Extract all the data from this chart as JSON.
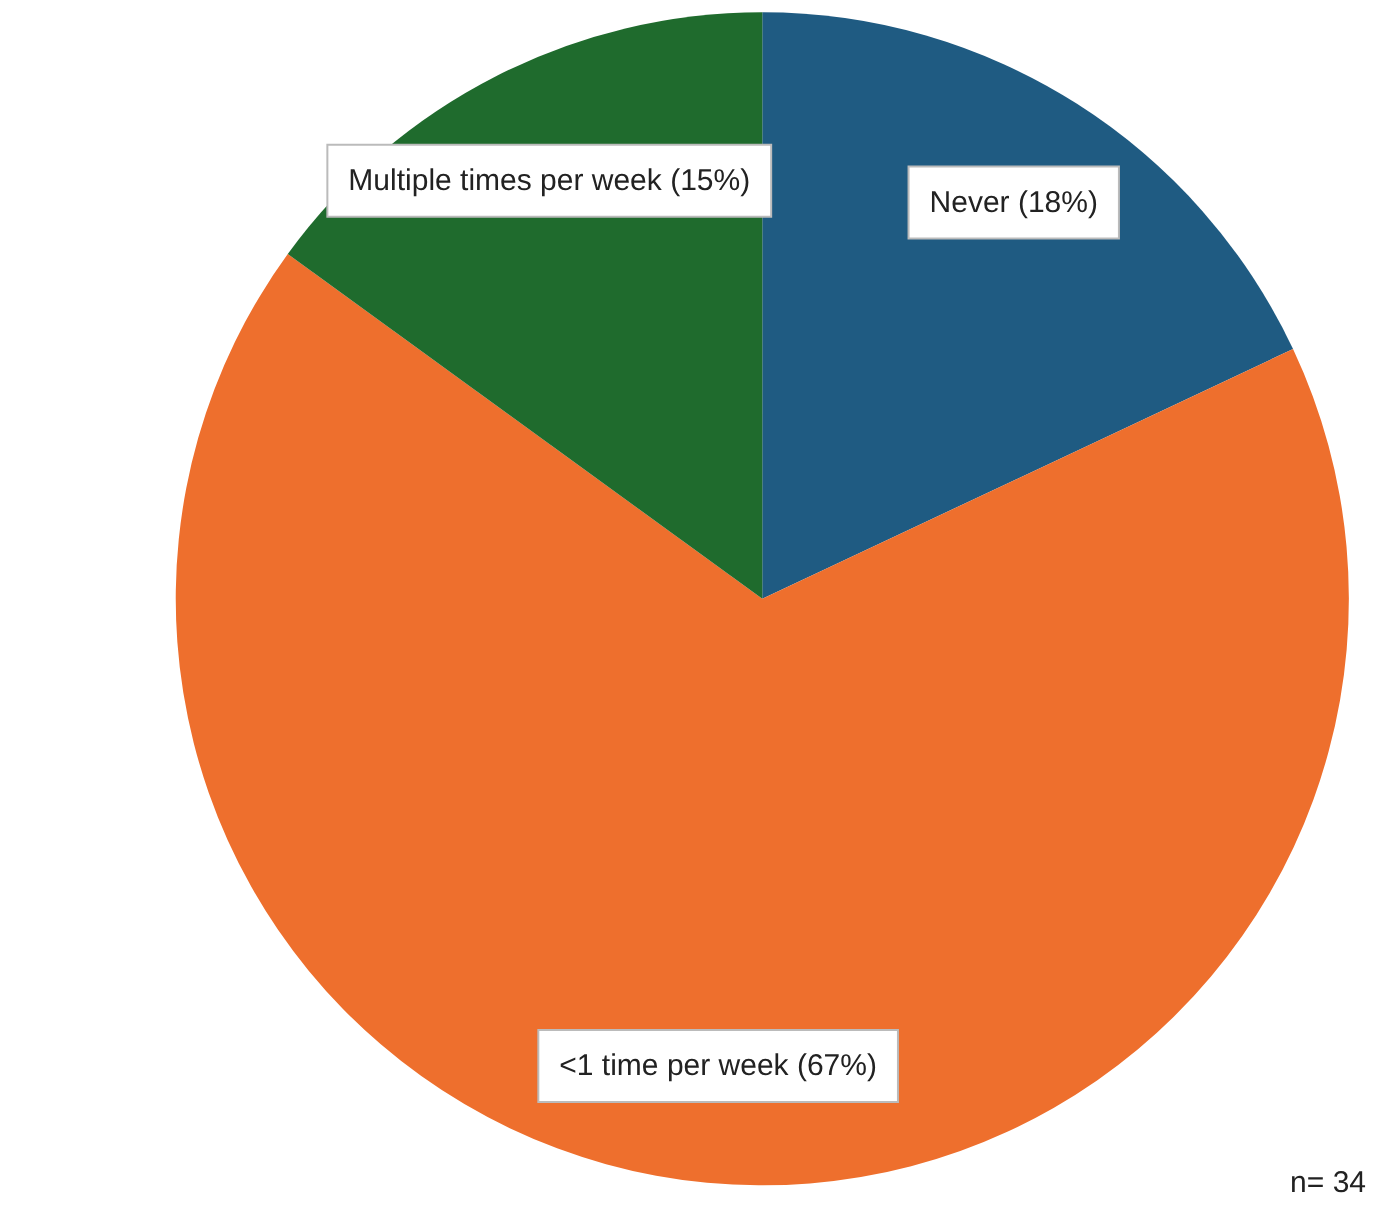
{
  "chart_data": {
    "type": "pie",
    "categories": [
      "Never (18%)",
      "<1 time per week (67%)",
      "Multiple times per week (15%)"
    ],
    "values": [
      18,
      67,
      15
    ],
    "colors": [
      "#1f5b82",
      "#ee6f2d",
      "#1f6b2d"
    ],
    "annotations": [
      "n= 34"
    ],
    "legend": false
  }
}
